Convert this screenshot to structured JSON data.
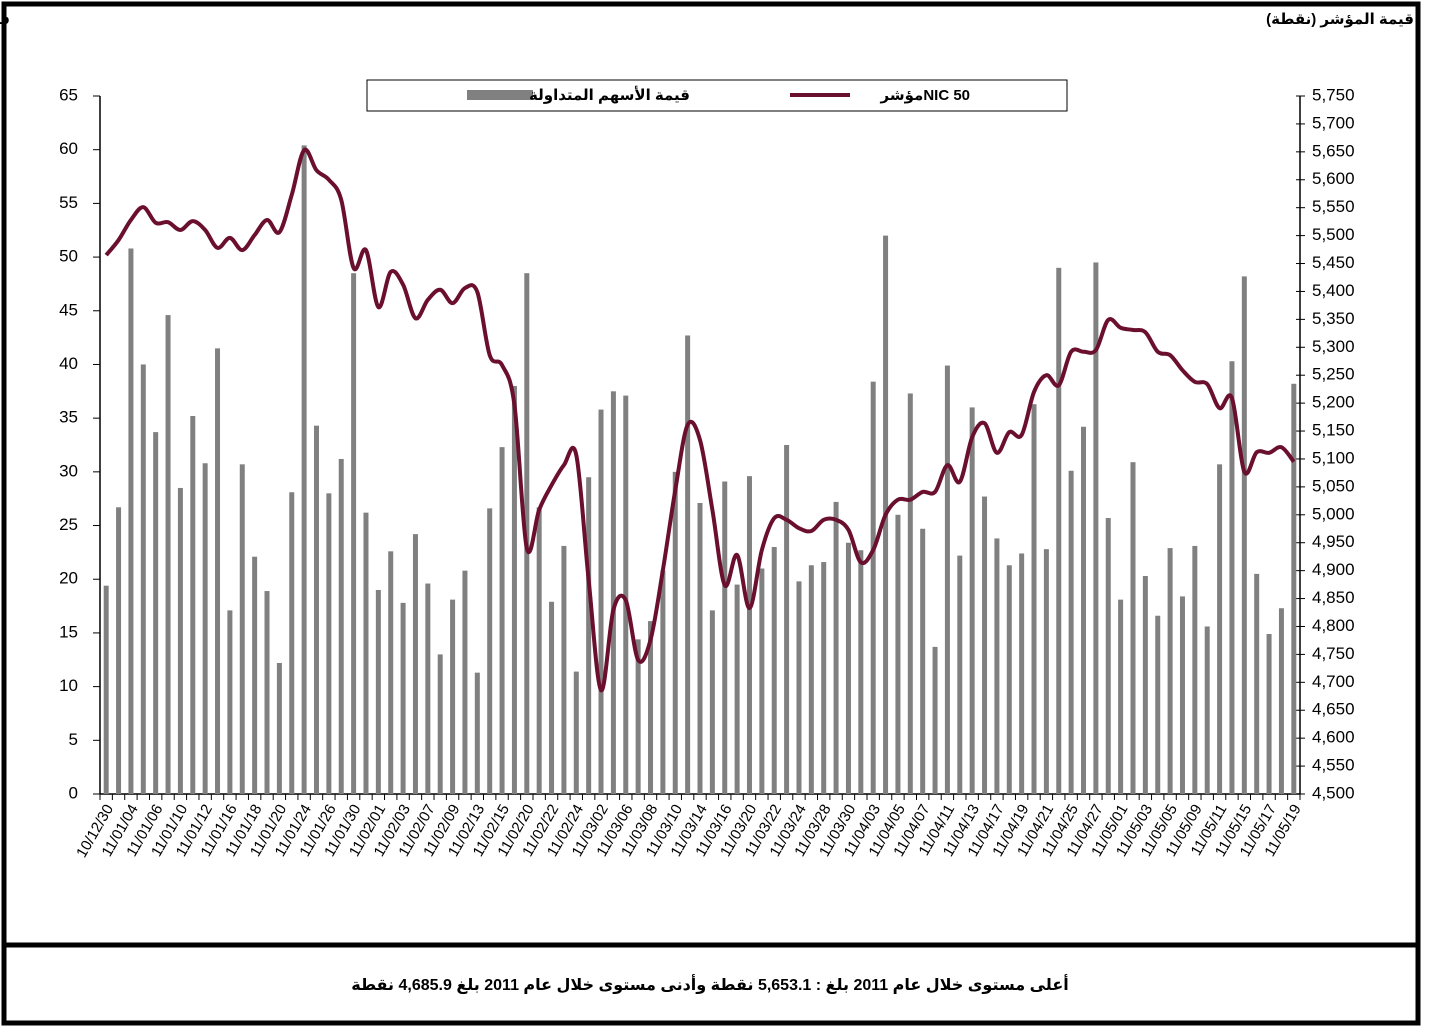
{
  "chart_data": {
    "type": "bar-line",
    "y_title": "قيمة الأسهم (مليون د.ك)",
    "y2_title": "قيمة المؤشر (نقطة)",
    "categories": [
      "10/12/30",
      null,
      "11/01/04",
      null,
      "11/01/06",
      null,
      "11/01/10",
      null,
      "11/01/12",
      null,
      "11/01/16",
      null,
      "11/01/18",
      null,
      "11/01/20",
      null,
      "11/01/24",
      null,
      "11/01/26",
      null,
      "11/01/30",
      null,
      "11/02/01",
      null,
      "11/02/03",
      null,
      "11/02/07",
      null,
      "11/02/09",
      null,
      "11/02/13",
      null,
      "11/02/15",
      null,
      "11/02/20",
      null,
      "11/02/22",
      null,
      "11/02/24",
      null,
      "11/03/02",
      null,
      "11/03/06",
      null,
      "11/03/08",
      null,
      "11/03/10",
      null,
      "11/03/14",
      null,
      "11/03/16",
      null,
      "11/03/20",
      null,
      "11/03/22",
      null,
      "11/03/24",
      null,
      "11/03/28",
      null,
      "11/03/30",
      null,
      "11/04/03",
      null,
      "11/04/05",
      null,
      "11/04/07",
      null,
      "11/04/11",
      null,
      "11/04/13",
      null,
      "11/04/17",
      null,
      "11/04/19",
      null,
      "11/04/21",
      null,
      "11/04/25",
      null,
      "11/04/27",
      null,
      "11/05/01",
      null,
      "11/05/03",
      null,
      "11/05/05",
      null,
      "11/05/09",
      null,
      "11/05/11",
      null,
      "11/05/15",
      null,
      "11/05/17",
      null,
      "11/05/19"
    ],
    "series": [
      {
        "name": "قيمة الأسهم المتداولة",
        "type": "bar",
        "axis": "y",
        "color": "#808080",
        "values": [
          19.4,
          26.7,
          50.8,
          40.0,
          33.7,
          44.6,
          28.5,
          35.2,
          30.8,
          41.5,
          17.1,
          30.7,
          22.1,
          18.9,
          12.2,
          28.1,
          60.4,
          34.3,
          28.0,
          31.2,
          48.5,
          26.2,
          19.0,
          22.6,
          17.8,
          24.2,
          19.6,
          13.0,
          18.1,
          20.8,
          11.3,
          26.6,
          32.3,
          38.0,
          48.5,
          26.7,
          17.9,
          23.1,
          11.4,
          29.5,
          35.8,
          37.5,
          37.1,
          14.4,
          16.1,
          20.8,
          30.0,
          42.7,
          27.1,
          17.1,
          29.1,
          19.5,
          29.6,
          21.0,
          23.0,
          32.5,
          19.8,
          21.3,
          21.6,
          27.2,
          23.4,
          22.7,
          38.4,
          52.0,
          26.0,
          37.3,
          24.7,
          13.7,
          39.9,
          22.2,
          36.0,
          27.7,
          23.8,
          21.3,
          22.4,
          36.3,
          22.8,
          49.0,
          30.1,
          34.2,
          49.5,
          25.7,
          18.1,
          30.9,
          20.3,
          16.6,
          22.9,
          18.4,
          23.1,
          15.6,
          30.7,
          40.3,
          48.2,
          20.5,
          14.9,
          17.3,
          38.2
        ]
      },
      {
        "name": "مؤشرNIC 50",
        "type": "line",
        "axis": "y2",
        "color": "#6b0f2f",
        "values": [
          5465,
          5492,
          5528,
          5551,
          5523,
          5524,
          5510,
          5526,
          5510,
          5478,
          5496,
          5474,
          5501,
          5528,
          5506,
          5573,
          5653.1,
          5617,
          5600,
          5564,
          5442,
          5474,
          5372,
          5435,
          5412,
          5352,
          5385,
          5403,
          5379,
          5406,
          5399,
          5286,
          5268,
          5197,
          4940,
          5009,
          5053,
          5089,
          5107,
          4883,
          4685.9,
          4830,
          4847,
          4740,
          4776,
          4901,
          5044,
          5161,
          5134,
          5009,
          4874,
          4928,
          4833,
          4937,
          4994,
          4991,
          4976,
          4971,
          4991,
          4991,
          4973,
          4915,
          4937,
          5000,
          5027,
          5027,
          5041,
          5041,
          5089,
          5059,
          5139,
          5164,
          5111,
          5148,
          5143,
          5220,
          5250,
          5232,
          5292,
          5292,
          5295,
          5349,
          5335,
          5331,
          5327,
          5292,
          5286,
          5259,
          5238,
          5234,
          5191,
          5209,
          5077,
          5112,
          5111,
          5121,
          5095
        ]
      }
    ],
    "ylim": [
      0,
      65
    ],
    "yticks": [
      0,
      5,
      10,
      15,
      20,
      25,
      30,
      35,
      40,
      45,
      50,
      55,
      60,
      65
    ],
    "y2lim": [
      4500,
      5750
    ],
    "y2ticks": [
      {
        "value": 4500,
        "label": "4,500"
      },
      {
        "value": 4550,
        "label": "4,550"
      },
      {
        "value": 4600,
        "label": "4,600"
      },
      {
        "value": 4650,
        "label": "4,650"
      },
      {
        "value": 4700,
        "label": "4,700"
      },
      {
        "value": 4750,
        "label": "4,750"
      },
      {
        "value": 4800,
        "label": "4,800"
      },
      {
        "value": 4850,
        "label": "4,850"
      },
      {
        "value": 4900,
        "label": "4,900"
      },
      {
        "value": 4950,
        "label": "4,950"
      },
      {
        "value": 5000,
        "label": "5,000"
      },
      {
        "value": 5050,
        "label": "5,050"
      },
      {
        "value": 5100,
        "label": "5,100"
      },
      {
        "value": 5150,
        "label": "5,150"
      },
      {
        "value": 5200,
        "label": "5,200"
      },
      {
        "value": 5250,
        "label": "5,250"
      },
      {
        "value": 5300,
        "label": "5,300"
      },
      {
        "value": 5350,
        "label": "5,350"
      },
      {
        "value": 5400,
        "label": "5,400"
      },
      {
        "value": 5450,
        "label": "5,450"
      },
      {
        "value": 5500,
        "label": "5,500"
      },
      {
        "value": 5550,
        "label": "5,550"
      },
      {
        "value": 5600,
        "label": "5,600"
      },
      {
        "value": 5650,
        "label": "5,650"
      },
      {
        "value": 5700,
        "label": "5,700"
      },
      {
        "value": 5750,
        "label": "5,750"
      }
    ],
    "legend": "top",
    "grid": false
  },
  "footer": "أعلى مستوى خلال عام 2011 بلغ : 5,653.1 نقطة وأدنى مستوى خلال عام 2011 بلغ 4,685.9 نقطة"
}
